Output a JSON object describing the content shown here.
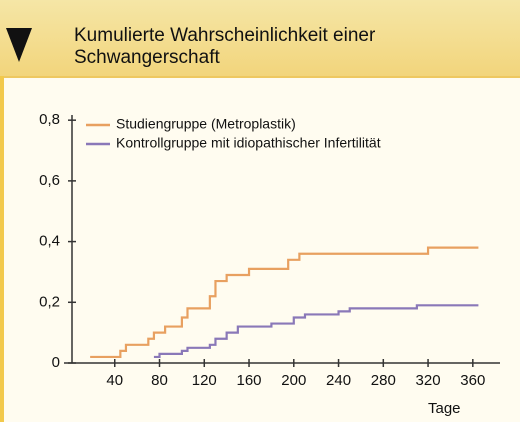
{
  "chart_data": {
    "type": "line",
    "title": [
      "Kumulierte Wahrscheinlichkeit einer",
      "Schwangerschaft"
    ],
    "x_label": "Tage",
    "series": [
      {
        "name": "Studiengruppe (Metroplastik)",
        "color": "#e8a060",
        "x": [
          18,
          45,
          45,
          50,
          50,
          55,
          55,
          70,
          70,
          75,
          75,
          85,
          85,
          90,
          90,
          100,
          100,
          105,
          105,
          115,
          115,
          125,
          125,
          130,
          130,
          140,
          140,
          145,
          145,
          160,
          160,
          165,
          165,
          195,
          195,
          205,
          205,
          220,
          220,
          320,
          320,
          325,
          325,
          365
        ],
        "values": [
          0.02,
          0.02,
          0.04,
          0.04,
          0.06,
          0.06,
          0.06,
          0.06,
          0.08,
          0.08,
          0.1,
          0.1,
          0.12,
          0.12,
          0.12,
          0.12,
          0.15,
          0.15,
          0.18,
          0.18,
          0.18,
          0.18,
          0.22,
          0.22,
          0.27,
          0.27,
          0.29,
          0.29,
          0.29,
          0.29,
          0.31,
          0.31,
          0.31,
          0.31,
          0.34,
          0.34,
          0.36,
          0.36,
          0.36,
          0.36,
          0.38,
          0.38,
          0.38,
          0.38
        ]
      },
      {
        "name": "Kontrollgruppe mit idiopathischer Infertilität",
        "color": "#8a78b8",
        "x": [
          75,
          80,
          80,
          100,
          100,
          105,
          105,
          125,
          125,
          130,
          130,
          140,
          140,
          150,
          150,
          170,
          170,
          180,
          180,
          200,
          200,
          210,
          210,
          240,
          240,
          250,
          250,
          300,
          300,
          310,
          310,
          365
        ],
        "values": [
          0.02,
          0.02,
          0.03,
          0.03,
          0.04,
          0.04,
          0.05,
          0.05,
          0.06,
          0.06,
          0.08,
          0.08,
          0.1,
          0.1,
          0.12,
          0.12,
          0.12,
          0.12,
          0.13,
          0.13,
          0.15,
          0.15,
          0.16,
          0.16,
          0.17,
          0.17,
          0.18,
          0.18,
          0.18,
          0.18,
          0.19,
          0.19
        ]
      }
    ],
    "xlim": [
      0,
      375
    ],
    "ylim": [
      0,
      0.85
    ],
    "xticks": [
      40,
      80,
      120,
      160,
      200,
      240,
      280,
      320,
      360
    ],
    "yticks": [
      0,
      {
        "value": 0.2,
        "label": "0,2"
      },
      {
        "value": 0.4,
        "label": "0,4"
      },
      {
        "value": 0.6,
        "label": "0,6"
      },
      {
        "value": 0.8,
        "label": "0,8"
      }
    ]
  }
}
